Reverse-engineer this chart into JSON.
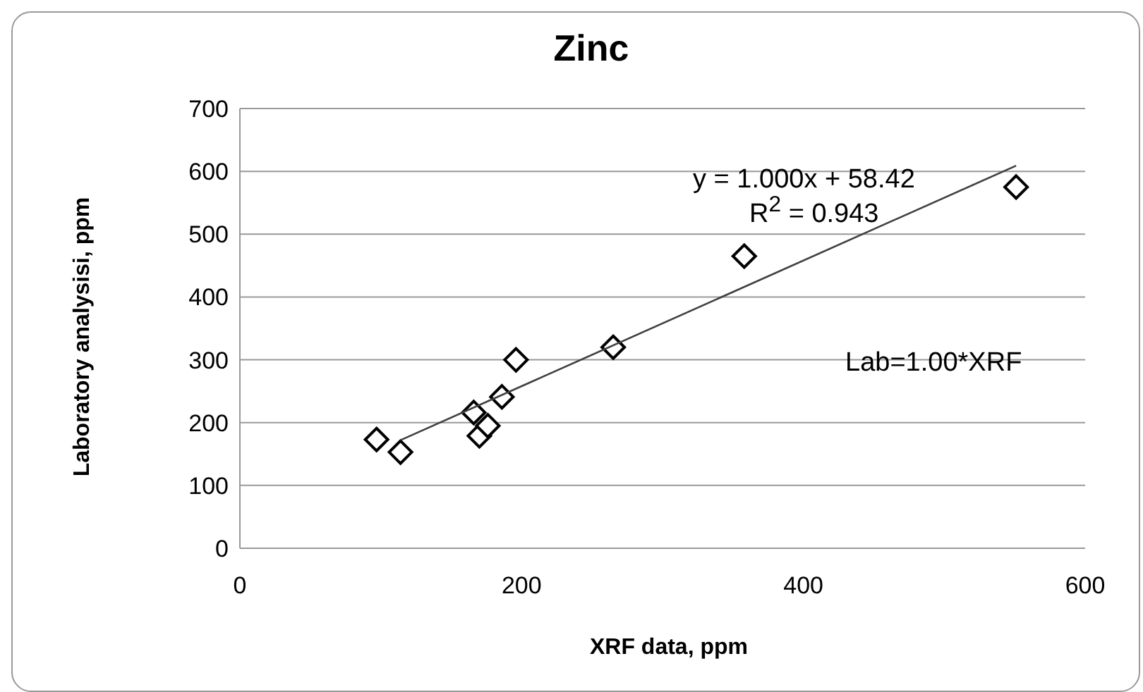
{
  "chart_data": {
    "type": "scatter",
    "title": "Zinc",
    "xlabel": "XRF data, ppm",
    "ylabel": "Laboratory analysisi, ppm",
    "series": [
      {
        "color": "#000000",
        "marker": "diamond",
        "x": [
          97,
          114,
          166,
          170,
          176,
          186,
          196,
          265,
          358,
          551
        ],
        "values": [
          173,
          153,
          216,
          179,
          195,
          241,
          300,
          320,
          465,
          575
        ]
      },
      {
        "type": "line",
        "color": "#404040",
        "marker": "none",
        "x": [
          114,
          551
        ],
        "values": [
          172,
          609
        ]
      }
    ],
    "xlim": [
      0,
      600
    ],
    "xticks": [
      0,
      200,
      400,
      600
    ],
    "ylim": [
      0,
      700
    ],
    "yticks": [
      0,
      100,
      200,
      300,
      400,
      500,
      600,
      700
    ],
    "grid": "y",
    "annotations": [
      "y = 1.000x + 58.42",
      "R$^{2}$ = 0.943",
      "Lab=1.00*XRF"
    ]
  }
}
